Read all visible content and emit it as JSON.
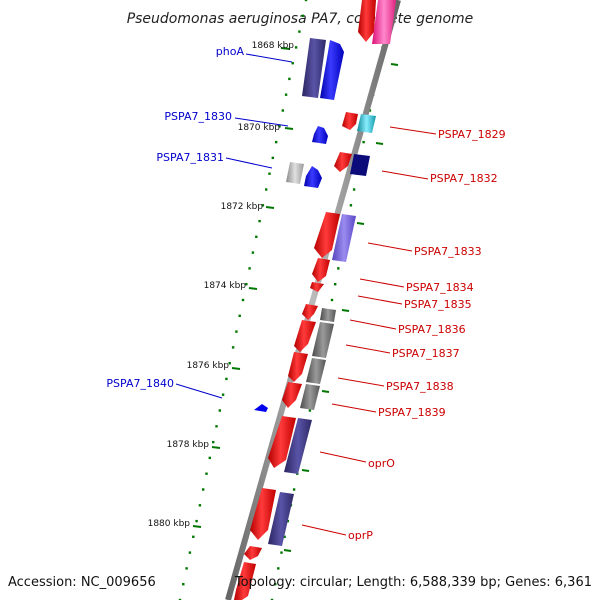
{
  "title": "Pseudomonas aeruginosa PA7, complete genome",
  "accession": "Accession: NC_009656",
  "topology": "Topology: circular; Length: 6,588,339 bp; Genes: 6,361",
  "ticks": [
    "1868 kbp",
    "1870 kbp",
    "1872 kbp",
    "1874 kbp",
    "1876 kbp",
    "1878 kbp",
    "1880 kbp"
  ],
  "left_labels": [
    "phoA",
    "PSPA7_1830",
    "PSPA7_1831",
    "PSPA7_1840"
  ],
  "right_labels": [
    "PSPA7_1829",
    "PSPA7_1832",
    "PSPA7_1833",
    "PSPA7_1834",
    "PSPA7_1835",
    "PSPA7_1836",
    "PSPA7_1837",
    "PSPA7_1838",
    "PSPA7_1839",
    "oprO",
    "oprP"
  ],
  "colors": {
    "forward_label": "#0000cc",
    "reverse_label": "#cc0000",
    "tick": "#007700",
    "backbone": "#8a8a8a",
    "red_gene": "#ff0000",
    "blue_gene": "#0000ff",
    "navy_gene": "#3a357a",
    "purple_gene": "#7060dd",
    "gray_gene": "#707070",
    "pink_gene": "#ff3399",
    "cyan_gene": "#22bbcc"
  }
}
